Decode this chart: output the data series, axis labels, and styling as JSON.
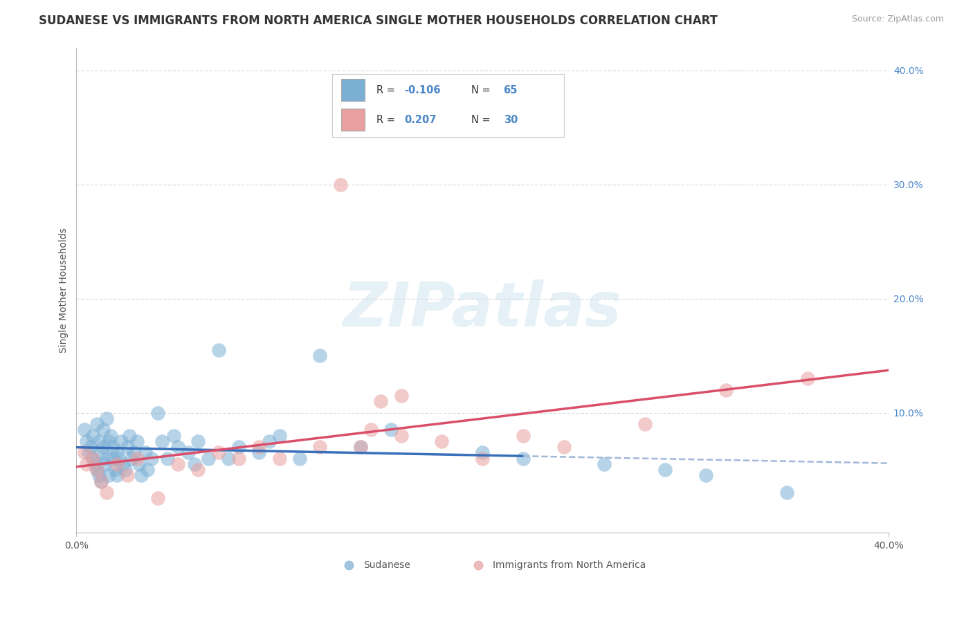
{
  "title": "SUDANESE VS IMMIGRANTS FROM NORTH AMERICA SINGLE MOTHER HOUSEHOLDS CORRELATION CHART",
  "source": "Source: ZipAtlas.com",
  "ylabel": "Single Mother Households",
  "x_min": 0.0,
  "x_max": 0.4,
  "y_min": -0.005,
  "y_max": 0.42,
  "blue_color": "#7bafd4",
  "pink_color": "#e8a0a0",
  "blue_line_color": "#3a6fba",
  "pink_line_color": "#d94f6a",
  "dashed_color": "#a0b8d8",
  "R_blue": -0.106,
  "N_blue": 65,
  "R_pink": 0.207,
  "N_pink": 30,
  "legend_label_blue": "Sudanese",
  "legend_label_pink": "Immigrants from North America",
  "watermark": "ZIPatlas",
  "stat_color": "#4a86c8",
  "background_color": "#ffffff",
  "grid_color": "#cccccc",
  "blue_scatter_x": [
    0.004,
    0.005,
    0.006,
    0.007,
    0.008,
    0.008,
    0.009,
    0.01,
    0.01,
    0.011,
    0.011,
    0.012,
    0.012,
    0.013,
    0.013,
    0.014,
    0.015,
    0.015,
    0.016,
    0.016,
    0.017,
    0.018,
    0.018,
    0.019,
    0.02,
    0.02,
    0.021,
    0.022,
    0.023,
    0.024,
    0.025,
    0.026,
    0.027,
    0.028,
    0.03,
    0.031,
    0.032,
    0.034,
    0.035,
    0.037,
    0.04,
    0.042,
    0.045,
    0.048,
    0.05,
    0.055,
    0.058,
    0.06,
    0.065,
    0.07,
    0.075,
    0.08,
    0.09,
    0.095,
    0.1,
    0.11,
    0.12,
    0.14,
    0.155,
    0.2,
    0.22,
    0.26,
    0.29,
    0.31,
    0.35
  ],
  "blue_scatter_y": [
    0.085,
    0.075,
    0.065,
    0.07,
    0.08,
    0.06,
    0.055,
    0.09,
    0.05,
    0.075,
    0.045,
    0.065,
    0.04,
    0.07,
    0.085,
    0.055,
    0.095,
    0.06,
    0.045,
    0.075,
    0.08,
    0.06,
    0.07,
    0.05,
    0.065,
    0.045,
    0.06,
    0.075,
    0.055,
    0.05,
    0.07,
    0.08,
    0.06,
    0.065,
    0.075,
    0.055,
    0.045,
    0.065,
    0.05,
    0.06,
    0.1,
    0.075,
    0.06,
    0.08,
    0.07,
    0.065,
    0.055,
    0.075,
    0.06,
    0.155,
    0.06,
    0.07,
    0.065,
    0.075,
    0.08,
    0.06,
    0.15,
    0.07,
    0.085,
    0.065,
    0.06,
    0.055,
    0.05,
    0.045,
    0.03
  ],
  "pink_scatter_x": [
    0.004,
    0.005,
    0.008,
    0.01,
    0.012,
    0.015,
    0.02,
    0.025,
    0.03,
    0.04,
    0.05,
    0.06,
    0.07,
    0.08,
    0.09,
    0.1,
    0.12,
    0.14,
    0.15,
    0.16,
    0.18,
    0.2,
    0.22,
    0.24,
    0.13,
    0.145,
    0.16,
    0.28,
    0.32,
    0.36
  ],
  "pink_scatter_y": [
    0.065,
    0.055,
    0.06,
    0.05,
    0.04,
    0.03,
    0.055,
    0.045,
    0.06,
    0.025,
    0.055,
    0.05,
    0.065,
    0.06,
    0.07,
    0.06,
    0.07,
    0.07,
    0.11,
    0.115,
    0.075,
    0.06,
    0.08,
    0.07,
    0.3,
    0.085,
    0.08,
    0.09,
    0.12,
    0.13
  ]
}
